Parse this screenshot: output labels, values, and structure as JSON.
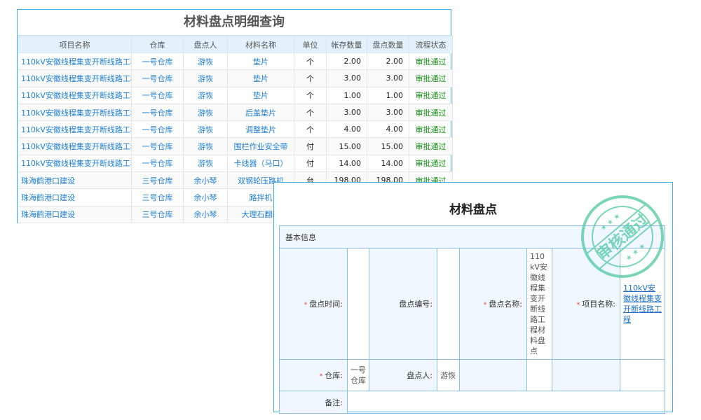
{
  "list": {
    "title": "材料盘点明细查询",
    "columns": [
      "项目名称",
      "仓库",
      "盘点人",
      "材料名称",
      "单位",
      "帐存数量",
      "盘点数量",
      "流程状态"
    ],
    "rows": [
      [
        "110kV安徽线程集变开断线路工程",
        "一号仓库",
        "游恢",
        "垫片",
        "个",
        "2.00",
        "2.00",
        "审批通过"
      ],
      [
        "110kV安徽线程集变开断线路工程",
        "一号仓库",
        "游恢",
        "垫片",
        "个",
        "3.00",
        "3.00",
        "审批通过"
      ],
      [
        "110kV安徽线程集变开断线路工程",
        "一号仓库",
        "游恢",
        "垫片",
        "个",
        "1.00",
        "1.00",
        "审批通过"
      ],
      [
        "110kV安徽线程集变开断线路工程",
        "一号仓库",
        "游恢",
        "后盖垫片",
        "个",
        "3.00",
        "3.00",
        "审批通过"
      ],
      [
        "110kV安徽线程集变开断线路工程",
        "一号仓库",
        "游恢",
        "调整垫片",
        "个",
        "4.00",
        "4.00",
        "审批通过"
      ],
      [
        "110kV安徽线程集变开断线路工程",
        "一号仓库",
        "游恢",
        "围栏作业安全带",
        "付",
        "15.00",
        "15.00",
        "审批通过"
      ],
      [
        "110kV安徽线程集变开断线路工程",
        "一号仓库",
        "游恢",
        "卡线器（马口）",
        "付",
        "14.00",
        "14.00",
        "审批通过"
      ],
      [
        "珠海鹤港口建设",
        "三号仓库",
        "余小琴",
        "双钢轮压路机",
        "台",
        "198.00",
        "198.00",
        "审批通过"
      ],
      [
        "珠海鹤港口建设",
        "三号仓库",
        "余小琴",
        "路拌机",
        "",
        "",
        "",
        ""
      ],
      [
        "珠海鹤港口建设",
        "三号仓库",
        "余小琴",
        "大理石翻新",
        "",
        "",
        "",
        ""
      ]
    ]
  },
  "detail": {
    "title": "材料盘点",
    "section": "基本信息",
    "date_label": "盘点时间:",
    "date_value": "",
    "code_label": "盘点编号:",
    "code_value": "",
    "name_label": "盘点名称:",
    "name_value": "110kV安徽线程集变开断线路工程材料盘点",
    "project_label": "项目名称:",
    "project_value": "110kV安徽线程集变开断线路工程",
    "warehouse_label": "仓库:",
    "warehouse_value": "一号仓库",
    "person_label": "盘点人:",
    "person_value": "游恢",
    "remark_label": "备注:",
    "remark_value": "",
    "stamp": "审核通过"
  },
  "colors": {
    "accent": "#3fb2e8",
    "link": "#1e7fd6",
    "approved": "#169116",
    "stamp": "#4fc9a0"
  }
}
